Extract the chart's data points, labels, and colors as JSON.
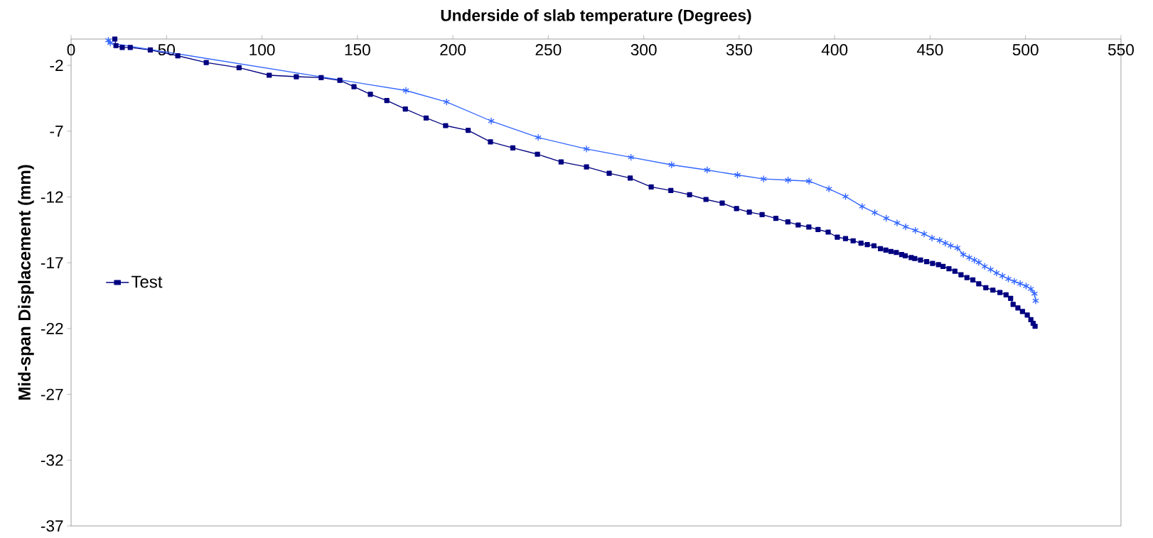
{
  "chart_data": {
    "type": "line",
    "title": "Underside of slab temperature  (Degrees)",
    "ylabel": "Mid-span Displacement (mm)",
    "xlim": [
      0,
      550
    ],
    "xticks": [
      0,
      50,
      100,
      150,
      200,
      250,
      300,
      350,
      400,
      450,
      500,
      550
    ],
    "ylim": [
      -37,
      0
    ],
    "yticks": [
      -2,
      -7,
      -12,
      -17,
      -22,
      -27,
      -32,
      -37
    ],
    "legend": "left",
    "grid": false,
    "line_style": "solid",
    "series": [
      {
        "name": "Test",
        "color": "#000080",
        "marker": "square",
        "x": [
          22.9,
          23.5,
          26.8,
          31,
          41.5,
          55.9,
          70.8,
          88,
          103.8,
          118,
          131,
          140.8,
          148.2,
          156.8,
          165.4,
          175.1,
          186,
          196.2,
          208,
          219.7,
          231.4,
          244.3,
          256.7,
          270,
          281.9,
          292.9,
          303.9,
          314.2,
          324,
          332.6,
          341.1,
          348.6,
          355.3,
          362,
          369.2,
          375.5,
          380.9,
          386.5,
          391.3,
          396.6,
          401.4,
          405.7,
          409.7,
          413.8,
          417.1,
          420.6,
          424,
          426.8,
          429.5,
          432.3,
          435.1,
          437,
          440.1,
          442,
          445,
          448.2,
          451.3,
          454.4,
          456.8,
          459.9,
          463,
          466.2,
          469.3,
          472.4,
          475.5,
          479.2,
          482.9,
          486.6,
          489.8,
          492.2,
          493.5,
          496,
          498.4,
          500.9,
          502.8,
          504,
          505
        ],
        "values": [
          0,
          -0.5,
          -0.64,
          -0.64,
          -0.83,
          -1.27,
          -1.79,
          -2.18,
          -2.75,
          -2.86,
          -2.93,
          -3.14,
          -3.62,
          -4.2,
          -4.67,
          -5.32,
          -6.0,
          -6.58,
          -6.94,
          -7.81,
          -8.27,
          -8.75,
          -9.34,
          -9.72,
          -10.2,
          -10.57,
          -11.24,
          -11.51,
          -11.83,
          -12.19,
          -12.47,
          -12.88,
          -13.15,
          -13.34,
          -13.63,
          -13.9,
          -14.13,
          -14.29,
          -14.47,
          -14.67,
          -15.06,
          -15.16,
          -15.33,
          -15.51,
          -15.62,
          -15.71,
          -15.93,
          -16.04,
          -16.14,
          -16.22,
          -16.38,
          -16.47,
          -16.61,
          -16.68,
          -16.79,
          -16.92,
          -17.05,
          -17.15,
          -17.28,
          -17.46,
          -17.64,
          -17.91,
          -18.13,
          -18.3,
          -18.6,
          -18.9,
          -19.08,
          -19.26,
          -19.44,
          -19.71,
          -20.16,
          -20.43,
          -20.7,
          -20.97,
          -21.33,
          -21.6,
          -21.83
        ]
      },
      {
        "color": "#3366ff",
        "marker": "cross",
        "x": [
          19.5,
          20.5,
          175.4,
          196.7,
          220.1,
          244.7,
          270,
          293.3,
          314.6,
          333.2,
          349.1,
          362.8,
          375.6,
          386.6,
          397,
          405.7,
          414.4,
          421,
          427,
          432.7,
          437.2,
          442.3,
          446.9,
          451,
          455,
          458,
          460.8,
          464.3,
          467.4,
          470.5,
          473.2,
          475.5,
          478.6,
          481.7,
          484.8,
          487.9,
          491,
          494.1,
          497.2,
          500.3,
          502.8,
          504.7,
          505.3
        ],
        "values": [
          -0.1,
          -0.3,
          -3.91,
          -4.78,
          -6.23,
          -7.48,
          -8.35,
          -8.99,
          -9.56,
          -9.95,
          -10.33,
          -10.63,
          -10.72,
          -10.8,
          -11.39,
          -11.97,
          -12.72,
          -13.19,
          -13.62,
          -13.98,
          -14.27,
          -14.54,
          -14.81,
          -15.12,
          -15.3,
          -15.51,
          -15.7,
          -15.87,
          -16.38,
          -16.61,
          -16.79,
          -16.97,
          -17.28,
          -17.51,
          -17.78,
          -18.0,
          -18.23,
          -18.41,
          -18.59,
          -18.77,
          -18.99,
          -19.35,
          -19.89
        ]
      }
    ]
  }
}
